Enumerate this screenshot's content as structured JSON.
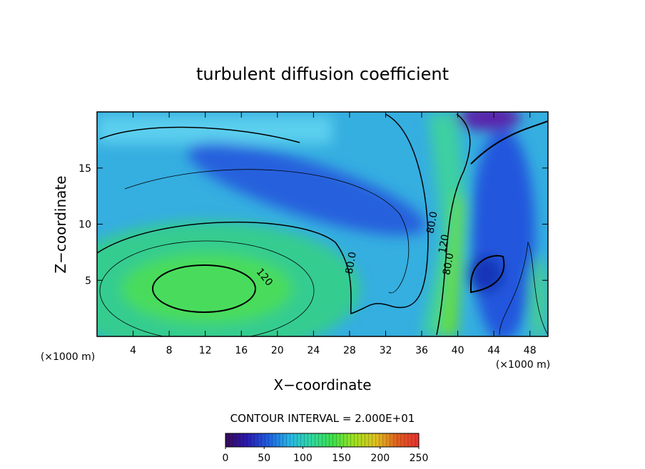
{
  "chart_data": {
    "type": "contour",
    "title": "turbulent diffusion coefficient",
    "x_label": "X−coordinate",
    "y_label": "Z−coordinate",
    "x_unit": "(×1000 m)",
    "y_unit": "(×1000 m)",
    "note": "CONTOUR INTERVAL = 2.000E+01",
    "xlim": [
      0,
      50
    ],
    "ylim": [
      0,
      20
    ],
    "xticks": [
      4,
      8,
      12,
      16,
      20,
      24,
      28,
      32,
      36,
      40,
      44,
      48
    ],
    "yticks": [
      5,
      10,
      15
    ],
    "annotations": [
      {
        "text": "120",
        "x": 18.3,
        "y": 5.1
      },
      {
        "text": "80.0",
        "x": 28.5,
        "y": 6.5
      },
      {
        "text": "80.0",
        "x": 37.5,
        "y": 10.1
      },
      {
        "text": "120",
        "x": 38.8,
        "y": 8.2
      },
      {
        "text": "80.0",
        "x": 39.3,
        "y": 6.4
      }
    ],
    "colorbar": {
      "lim": [
        0,
        250
      ],
      "ticks": [
        0,
        50,
        100,
        150,
        200,
        250
      ],
      "colors": [
        "#3a0a5a",
        "#2a1ab0",
        "#1f5fe0",
        "#29b6e6",
        "#2fd8a0",
        "#3ee04a",
        "#9fe020",
        "#e0c020",
        "#e06020",
        "#e83030"
      ]
    }
  }
}
